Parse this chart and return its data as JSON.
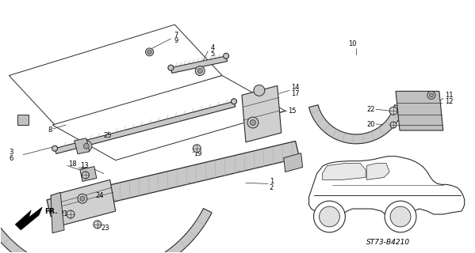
{
  "bg_color": "#ffffff",
  "line_color": "#2a2a2a",
  "diagram_code": "ST73-B4210",
  "font_size": 6.0,
  "label_color": "#1a1a1a",
  "strip_face": "#d0d0d0",
  "strip_edge": "#2a2a2a",
  "shading": "#b8b8b8"
}
